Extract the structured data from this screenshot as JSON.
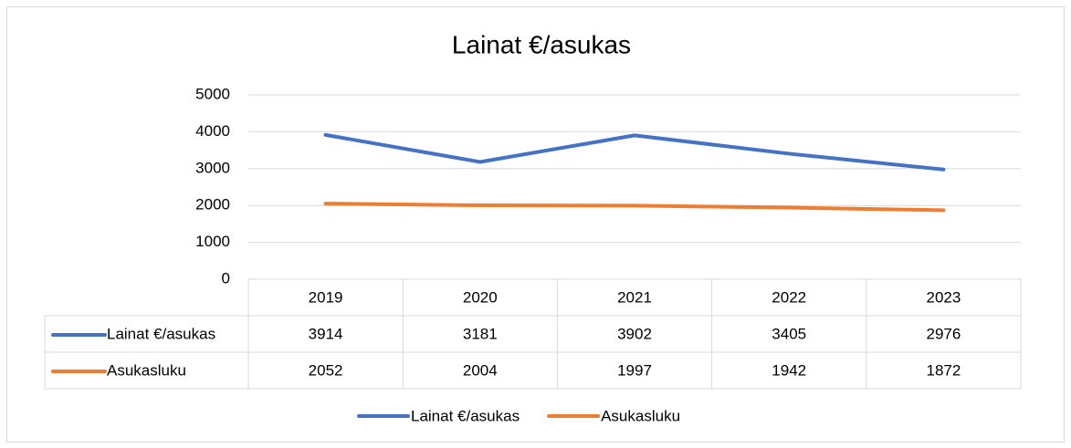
{
  "chart_data": {
    "type": "line",
    "title": "Lainat €/asukas",
    "categories": [
      "2019",
      "2020",
      "2021",
      "2022",
      "2023"
    ],
    "series": [
      {
        "name": "Lainat €/asukas",
        "color": "#4472c4",
        "values": [
          3914,
          3181,
          3902,
          3405,
          2976
        ]
      },
      {
        "name": "Asukasluku",
        "color": "#ed7d31",
        "values": [
          2052,
          2004,
          1997,
          1942,
          1872
        ]
      }
    ],
    "ylim": [
      0,
      5000
    ],
    "yticks": [
      0,
      1000,
      2000,
      3000,
      4000,
      5000
    ],
    "grid": true,
    "legend": "bottom",
    "data_table": true
  }
}
